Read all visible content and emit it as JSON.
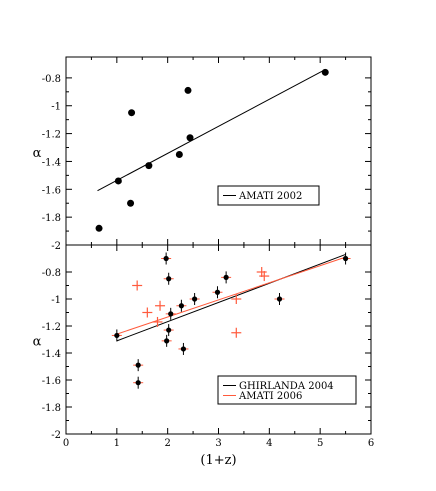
{
  "chart_data": [
    {
      "type": "scatter",
      "xlim": [
        0,
        6
      ],
      "ylim": [
        -2,
        -0.65
      ],
      "ylabel": "α",
      "xlabel": "",
      "yticks": [
        -2,
        -1.8,
        -1.6,
        -1.4,
        -1.2,
        -1,
        -0.8
      ],
      "ytick_labels": [
        "-2",
        "-1.8",
        "-1.6",
        "-1.4",
        "-1.2",
        "-1",
        "-0.8"
      ],
      "grid": false,
      "legend_position": "bottom-right",
      "series": [
        {
          "marker": "filled-circle",
          "color": "#000000",
          "points": [
            {
              "x": 0.65,
              "y": -1.88
            },
            {
              "x": 1.03,
              "y": -1.54
            },
            {
              "x": 1.27,
              "y": -1.7
            },
            {
              "x": 1.29,
              "y": -1.05
            },
            {
              "x": 1.63,
              "y": -1.43
            },
            {
              "x": 2.23,
              "y": -1.35
            },
            {
              "x": 2.4,
              "y": -0.89
            },
            {
              "x": 2.44,
              "y": -1.23
            },
            {
              "x": 5.1,
              "y": -0.76
            }
          ]
        }
      ],
      "fits": [
        {
          "name": "AMATI 2002",
          "color": "#000000",
          "x": [
            0.62,
            5.1
          ],
          "y": [
            -1.61,
            -0.74
          ]
        }
      ]
    },
    {
      "type": "scatter",
      "xlim": [
        0,
        6
      ],
      "ylim": [
        -2,
        -0.6
      ],
      "xlabel": "(1+z)",
      "ylabel": "α",
      "xticks": [
        0,
        1,
        2,
        3,
        4,
        5,
        6
      ],
      "xtick_labels": [
        "0",
        "1",
        "2",
        "3",
        "4",
        "5",
        "6"
      ],
      "yticks": [
        -2,
        -1.8,
        -1.6,
        -1.4,
        -1.2,
        -1,
        -0.8
      ],
      "ytick_labels": [
        "-2",
        "-1.8",
        "-1.6",
        "-1.4",
        "-1.2",
        "-1",
        "-0.8"
      ],
      "grid": false,
      "legend_position": "bottom-right",
      "series": [
        {
          "marker": "filled-circle-cross",
          "color": "#000000",
          "points": [
            {
              "x": 1.0,
              "y": -1.27
            },
            {
              "x": 1.42,
              "y": -1.49
            },
            {
              "x": 1.42,
              "y": -1.62
            },
            {
              "x": 1.97,
              "y": -0.7
            },
            {
              "x": 2.02,
              "y": -0.85
            },
            {
              "x": 2.06,
              "y": -1.11
            },
            {
              "x": 2.02,
              "y": -1.23
            },
            {
              "x": 1.98,
              "y": -1.31
            },
            {
              "x": 2.27,
              "y": -1.05
            },
            {
              "x": 2.31,
              "y": -1.37
            },
            {
              "x": 2.53,
              "y": -1.0
            },
            {
              "x": 2.98,
              "y": -0.95
            },
            {
              "x": 3.15,
              "y": -0.84
            },
            {
              "x": 4.2,
              "y": -1.0
            },
            {
              "x": 5.5,
              "y": -0.7
            }
          ]
        },
        {
          "marker": "plus",
          "color": "#ff5a3c",
          "points": [
            {
              "x": 1.4,
              "y": -0.9
            },
            {
              "x": 1.6,
              "y": -1.1
            },
            {
              "x": 1.8,
              "y": -1.17
            },
            {
              "x": 1.85,
              "y": -1.05
            },
            {
              "x": 3.35,
              "y": -1.0
            },
            {
              "x": 3.35,
              "y": -1.25
            },
            {
              "x": 3.85,
              "y": -0.8
            },
            {
              "x": 3.9,
              "y": -0.83
            }
          ]
        }
      ],
      "fits": [
        {
          "name": "GHIRLANDA 2004",
          "color": "#000000",
          "x": [
            1.0,
            5.5
          ],
          "y": [
            -1.31,
            -0.67
          ]
        },
        {
          "name": "AMATI 2006",
          "color": "#ff5a3c",
          "x": [
            1.0,
            5.5
          ],
          "y": [
            -1.26,
            -0.69
          ]
        }
      ]
    }
  ]
}
